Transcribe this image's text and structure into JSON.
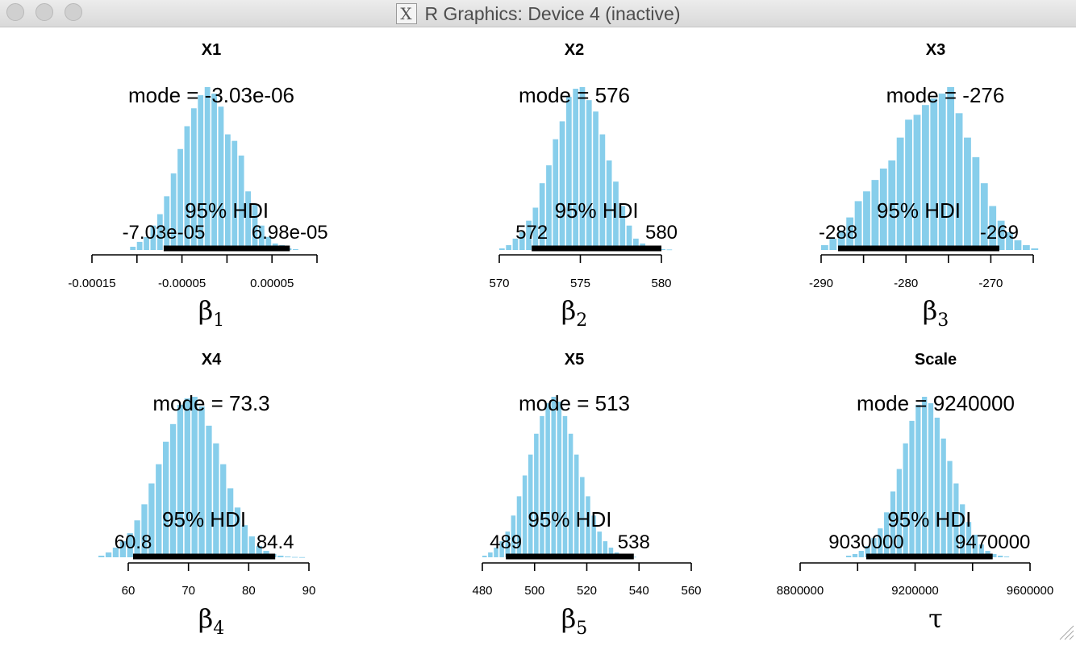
{
  "window": {
    "title": "R Graphics: Device 4 (inactive)",
    "icon": "x11-icon"
  },
  "chart_data": [
    {
      "type": "bar",
      "title": "X1",
      "mode_label": "mode = -3.03e-06",
      "hdi_label": "95% HDI",
      "hdi_low_label": "-7.03e-05",
      "hdi_high_label": "6.98e-05",
      "hdi": [
        -7.03e-05,
        6.98e-05
      ],
      "xlim": [
        -0.00015,
        0.0001
      ],
      "ticks": [
        -0.00015,
        -0.0001,
        -5e-05,
        0,
        5e-05,
        0.0001
      ],
      "tick_labels": [
        "-0.00015",
        "",
        "-0.00005",
        "",
        "0.00005",
        ""
      ],
      "xlabel_main": "β",
      "xlabel_sub": "1",
      "bin_start": -0.0001076,
      "bin_width": 7.53e-06,
      "counts": [
        0.02,
        0.05,
        0.08,
        0.15,
        0.22,
        0.33,
        0.47,
        0.62,
        0.76,
        0.87,
        0.95,
        1.0,
        0.96,
        0.88,
        0.71,
        0.67,
        0.58,
        0.36,
        0.28,
        0.15,
        0.08,
        0.04,
        0.03,
        0.01,
        0.005
      ]
    },
    {
      "type": "bar",
      "title": "X2",
      "mode_label": "mode = 576",
      "hdi_label": "95% HDI",
      "hdi_low_label": "572",
      "hdi_high_label": "580",
      "hdi": [
        572,
        580
      ],
      "xlim": [
        570,
        580
      ],
      "ticks": [
        570,
        575,
        580
      ],
      "tick_labels": [
        "570",
        "575",
        "580"
      ],
      "xlabel_main": "β",
      "xlabel_sub": "2",
      "bin_start": 570.0,
      "bin_width": 0.413,
      "counts": [
        0.01,
        0.03,
        0.07,
        0.11,
        0.18,
        0.26,
        0.41,
        0.52,
        0.68,
        0.79,
        0.94,
        0.99,
        1.0,
        0.92,
        0.85,
        0.71,
        0.55,
        0.42,
        0.27,
        0.15,
        0.07,
        0.04,
        0.02,
        0.01,
        0.005,
        0.003
      ]
    },
    {
      "type": "bar",
      "title": "X3",
      "mode_label": "mode = -276",
      "hdi_label": "95% HDI",
      "hdi_low_label": "-288",
      "hdi_high_label": "-269",
      "hdi": [
        -288,
        -269
      ],
      "xlim": [
        -290,
        -265
      ],
      "ticks": [
        -290,
        -285,
        -280,
        -275,
        -270,
        -265
      ],
      "tick_labels": [
        "-290",
        "",
        "-280",
        "",
        "-270",
        ""
      ],
      "xlabel_main": "β",
      "xlabel_sub": "3",
      "bin_start": -290.0,
      "bin_width": 0.99,
      "counts": [
        0.03,
        0.07,
        0.12,
        0.2,
        0.3,
        0.36,
        0.43,
        0.5,
        0.55,
        0.69,
        0.8,
        0.83,
        0.89,
        0.93,
        0.96,
        1.0,
        0.84,
        0.69,
        0.57,
        0.41,
        0.27,
        0.18,
        0.11,
        0.06,
        0.03,
        0.01
      ]
    },
    {
      "type": "bar",
      "title": "X4",
      "mode_label": "mode = 73.3",
      "hdi_label": "95% HDI",
      "hdi_low_label": "60.8",
      "hdi_high_label": "84.4",
      "hdi": [
        60.8,
        84.4
      ],
      "xlim": [
        60,
        90
      ],
      "ticks": [
        60,
        70,
        80,
        90
      ],
      "tick_labels": [
        "60",
        "70",
        "80",
        "90"
      ],
      "xlabel_main": "β",
      "xlabel_sub": "4",
      "bin_start": 55.05,
      "bin_width": 1.19,
      "counts": [
        0.01,
        0.03,
        0.06,
        0.1,
        0.15,
        0.23,
        0.33,
        0.46,
        0.58,
        0.72,
        0.83,
        0.95,
        0.99,
        1.0,
        0.94,
        0.82,
        0.71,
        0.58,
        0.43,
        0.31,
        0.2,
        0.13,
        0.07,
        0.04,
        0.02,
        0.01,
        0.005,
        0.002,
        0.001
      ]
    },
    {
      "type": "bar",
      "title": "X5",
      "mode_label": "mode = 513",
      "hdi_label": "95% HDI",
      "hdi_low_label": "489",
      "hdi_high_label": "538",
      "hdi": [
        489,
        538
      ],
      "xlim": [
        480,
        560
      ],
      "ticks": [
        480,
        500,
        520,
        540,
        560
      ],
      "tick_labels": [
        "480",
        "500",
        "520",
        "540",
        "560"
      ],
      "xlabel_main": "β",
      "xlabel_sub": "5",
      "bin_start": 480.0,
      "bin_width": 2.2,
      "counts": [
        0.01,
        0.03,
        0.06,
        0.1,
        0.16,
        0.26,
        0.38,
        0.51,
        0.64,
        0.77,
        0.88,
        0.96,
        1.0,
        0.97,
        0.88,
        0.77,
        0.64,
        0.5,
        0.38,
        0.26,
        0.16,
        0.1,
        0.06,
        0.03,
        0.01,
        0.005,
        0.003
      ]
    },
    {
      "type": "bar",
      "title": "Scale",
      "mode_label": "mode = 9240000",
      "hdi_label": "95% HDI",
      "hdi_low_label": "9030000",
      "hdi_high_label": "9470000",
      "hdi": [
        9030000,
        9470000
      ],
      "xlim": [
        8800000,
        9600000
      ],
      "ticks": [
        8800000,
        9000000,
        9200000,
        9400000,
        9600000
      ],
      "tick_labels": [
        "8800000",
        "",
        "9200000",
        "",
        "9600000"
      ],
      "xlabel_main": "τ",
      "xlabel_sub": "",
      "bin_start": 8960000,
      "bin_width": 22000,
      "counts": [
        0.01,
        0.02,
        0.04,
        0.07,
        0.12,
        0.18,
        0.28,
        0.41,
        0.55,
        0.71,
        0.85,
        0.95,
        1.0,
        0.96,
        0.87,
        0.74,
        0.6,
        0.46,
        0.33,
        0.22,
        0.14,
        0.08,
        0.04,
        0.02,
        0.01,
        0.005
      ]
    }
  ],
  "colors": {
    "bar_fill": "#87ceeb",
    "hdi_line": "#000000",
    "axis": "#000000",
    "background": "#ffffff"
  }
}
